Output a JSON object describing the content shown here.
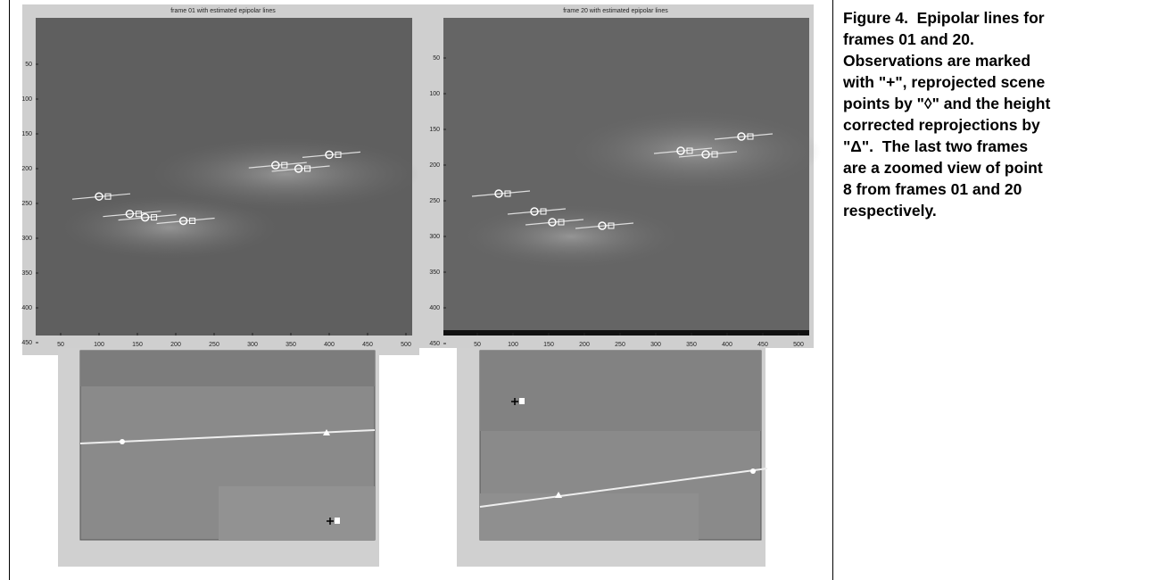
{
  "figures": [
    {
      "title": "frame 01 with estimated epipolar lines",
      "xticks": [
        50,
        100,
        150,
        200,
        250,
        300,
        350,
        400,
        450,
        500
      ],
      "yticks": [
        50,
        100,
        150,
        200,
        250,
        300,
        350,
        400,
        450
      ]
    },
    {
      "title": "frame 20 with estimated epipolar lines",
      "xticks": [
        50,
        100,
        150,
        200,
        250,
        300,
        350,
        400,
        450,
        500
      ],
      "yticks": [
        50,
        100,
        150,
        200,
        250,
        300,
        350,
        400,
        450
      ]
    }
  ],
  "caption_lines": [
    "Figure 4.  Epipolar lines for",
    "frames 01 and 20.",
    "Observations are marked",
    "with \"+\", reprojected scene",
    "points by \"◊\" and the height",
    "corrected reprojections by",
    "\"Δ\".  The last two frames",
    "are a zoomed view of point",
    "8 from frames 01 and 20",
    "respectively."
  ]
}
